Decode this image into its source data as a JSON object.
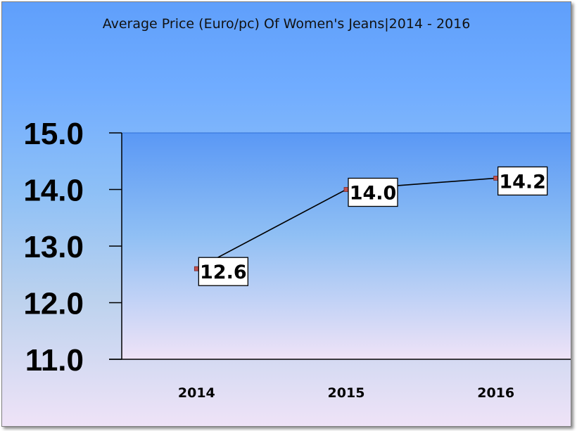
{
  "chart_data": {
    "type": "line",
    "title": "Average Price (Euro/pc) Of Women's Jeans|2014 - 2016",
    "xlabel": "",
    "ylabel": "",
    "categories": [
      "2014",
      "2015",
      "2016"
    ],
    "series": [
      {
        "values": [
          12.6,
          14.0,
          14.2
        ],
        "color": "#c0504d"
      }
    ],
    "data_labels": [
      "12.6",
      "14.0",
      "14.2"
    ],
    "y_ticks": [
      "11.0",
      "12.0",
      "13.0",
      "14.0",
      "15.0"
    ],
    "ylim": [
      11,
      15
    ],
    "grid": false,
    "legend": "none"
  },
  "colors": {
    "line": "#000000",
    "marker": "#c0504d",
    "plot_area_top": "#5a98f5",
    "plot_area_bottom": "#efe3f7"
  }
}
